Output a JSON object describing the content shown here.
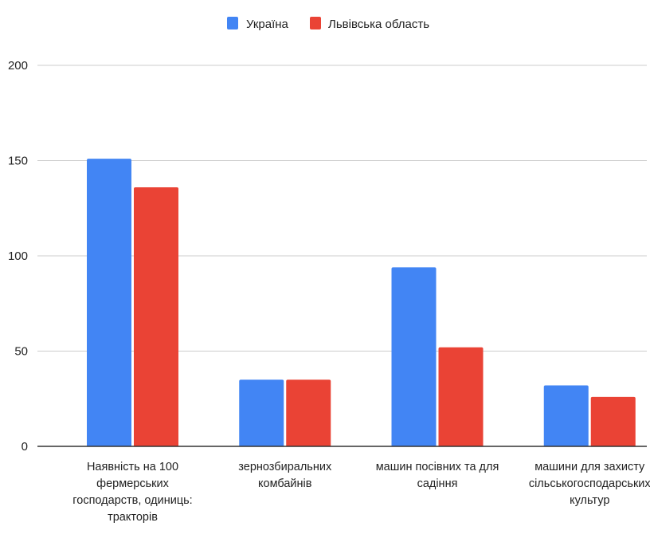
{
  "chart_data": {
    "type": "bar",
    "categories": [
      [
        "Наявність на 100",
        "фермерських",
        "господарств, одиниць:",
        "тракторів"
      ],
      [
        "зернозбиральних",
        "комбайнів"
      ],
      [
        "машин посівних та для",
        "садіння"
      ],
      [
        "машини для захисту",
        "сільськогосподарських",
        "культур"
      ]
    ],
    "series": [
      {
        "name": "Україна",
        "color": "#4285f4",
        "values": [
          151,
          35,
          94,
          32
        ]
      },
      {
        "name": "Львівська область",
        "color": "#ea4335",
        "values": [
          136,
          35,
          52,
          26
        ]
      }
    ],
    "ylim": [
      0,
      200
    ],
    "yticks": [
      0,
      50,
      100,
      150,
      200
    ],
    "grid": true,
    "legend_position": "top-center",
    "title": "",
    "xlabel": "",
    "ylabel": ""
  }
}
